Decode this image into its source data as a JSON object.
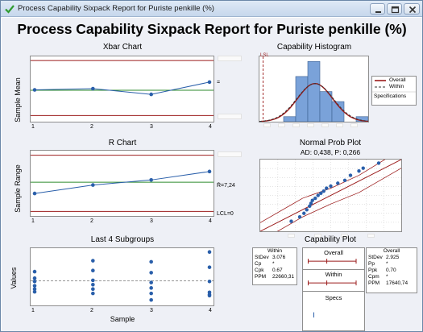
{
  "window": {
    "title": "Process Capability Sixpack Report for Puriste penkille (%)",
    "icon": "check-icon",
    "controls": [
      "minimize-icon",
      "maximize-icon",
      "close-icon"
    ]
  },
  "report": {
    "title": "Process Capability Sixpack Report for Puriste penkille (%)"
  },
  "colors": {
    "data": "#2a5faa",
    "limit": "#9b1b1b",
    "center": "#2e8b2e",
    "bar": "#7aa2d9",
    "panel_bg": "#eef0f6"
  },
  "xbar_chart": {
    "title": "Xbar Chart",
    "ylabel": "Sample Mean",
    "x_ticks": [
      "1",
      "2",
      "3",
      "4"
    ],
    "center_label": "=",
    "chart_data": {
      "type": "line",
      "x": [
        1,
        2,
        3,
        4
      ],
      "values": [
        0.63,
        0.66,
        0.52,
        0.82
      ],
      "center": 0.62,
      "ucl": 1.35,
      "lcl": 0.0,
      "ylim": [
        -0.15,
        1.45
      ]
    }
  },
  "r_chart": {
    "title": "R Chart",
    "ylabel": "Sample Range",
    "x_ticks": [
      "1",
      "2",
      "3",
      "4"
    ],
    "center_label": "R̄=7,24",
    "lcl_label": "LCL=0",
    "chart_data": {
      "type": "line",
      "x": [
        1,
        2,
        3,
        4
      ],
      "values": [
        0.32,
        0.47,
        0.56,
        0.71
      ],
      "center": 0.52,
      "ucl": 1.0,
      "lcl": 0.0,
      "ylim": [
        -0.08,
        1.08
      ]
    }
  },
  "last_subgroups": {
    "title": "Last 4 Subgroups",
    "ylabel": "Values",
    "xlabel": "Sample",
    "x_ticks": [
      "1",
      "2",
      "3",
      "4"
    ],
    "chart_data": {
      "type": "scatter",
      "groups": [
        {
          "x": 1,
          "values": [
            0.62,
            0.5,
            0.44,
            0.36,
            0.3,
            0.25
          ]
        },
        {
          "x": 2,
          "values": [
            0.82,
            0.64,
            0.46,
            0.38,
            0.3,
            0.22
          ]
        },
        {
          "x": 3,
          "values": [
            0.8,
            0.6,
            0.42,
            0.32,
            0.22,
            0.1
          ]
        },
        {
          "x": 4,
          "values": [
            0.98,
            0.7,
            0.44,
            0.24,
            0.2,
            0.18
          ]
        }
      ],
      "reference": 0.45,
      "ylim": [
        0,
        1.05
      ]
    }
  },
  "capability_histogram": {
    "title": "Capability Histogram",
    "lsl_label": "LSL",
    "legend": {
      "overall": "Overall",
      "within": "Within",
      "specifications": "Specifications"
    },
    "chart_data": {
      "type": "bar",
      "values": [
        1,
        9,
        12,
        6,
        4,
        0,
        1
      ],
      "ylim": [
        0,
        13
      ],
      "normal_mean": 2.6,
      "normal_sd": 1.45,
      "normal_peak": 7.6,
      "lsl": -1.7,
      "xlim": [
        -2.0,
        7.0
      ]
    }
  },
  "normal_prob_plot": {
    "title": "Normal Prob Plot",
    "subtitle": "AD: 0,438, P: 0,266",
    "chart_data": {
      "type": "scatter",
      "points": [
        [
          0.22,
          0.14
        ],
        [
          0.28,
          0.2
        ],
        [
          0.31,
          0.25
        ],
        [
          0.33,
          0.3
        ],
        [
          0.35,
          0.35
        ],
        [
          0.36,
          0.39
        ],
        [
          0.37,
          0.43
        ],
        [
          0.39,
          0.46
        ],
        [
          0.41,
          0.5
        ],
        [
          0.43,
          0.53
        ],
        [
          0.45,
          0.56
        ],
        [
          0.47,
          0.6
        ],
        [
          0.5,
          0.63
        ],
        [
          0.55,
          0.67
        ],
        [
          0.6,
          0.71
        ],
        [
          0.64,
          0.78
        ],
        [
          0.7,
          0.84
        ],
        [
          0.73,
          0.88
        ],
        [
          0.84,
          0.95
        ]
      ],
      "fit": [
        [
          0.0,
          0.0
        ],
        [
          1.0,
          1.0
        ]
      ],
      "band_upper": [
        [
          0.0,
          0.12
        ],
        [
          0.3,
          0.46
        ],
        [
          0.5,
          0.6
        ],
        [
          0.7,
          0.78
        ],
        [
          1.0,
          1.14
        ]
      ],
      "band_lower": [
        [
          0.0,
          -0.14
        ],
        [
          0.3,
          0.2
        ],
        [
          0.5,
          0.38
        ],
        [
          0.7,
          0.54
        ],
        [
          1.0,
          0.88
        ]
      ],
      "xlim": [
        0,
        1
      ],
      "ylim": [
        0,
        1
      ]
    }
  },
  "capability_plot": {
    "title": "Capability Plot",
    "within": {
      "header": "Within",
      "rows": [
        {
          "label": "StDev",
          "value": "3.076"
        },
        {
          "label": "Cp",
          "value": "*"
        },
        {
          "label": "Cpk",
          "value": "0.67"
        },
        {
          "label": "PPM",
          "value": "22660,31"
        }
      ]
    },
    "overall": {
      "header": "Overall",
      "rows": [
        {
          "label": "StDev",
          "value": "2.925"
        },
        {
          "label": "Pp",
          "value": "*"
        },
        {
          "label": "Ppk",
          "value": "0.70"
        },
        {
          "label": "Cpm",
          "value": "*"
        },
        {
          "label": "PPM",
          "value": "17640,74"
        }
      ]
    },
    "intervals": [
      {
        "name": "Overall",
        "low": 0.05,
        "mid": 0.38,
        "high": 0.9
      },
      {
        "name": "Within",
        "low": 0.05,
        "mid": 0.38,
        "high": 0.9
      },
      {
        "name": "Specs",
        "low": 0.15,
        "mid": 0.15,
        "high": 0.15
      }
    ]
  }
}
